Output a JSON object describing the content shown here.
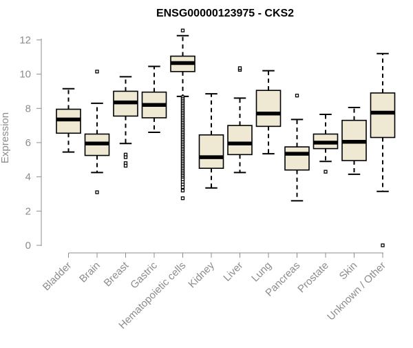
{
  "chart_data": {
    "type": "box",
    "title": "ENSG00000123975 - CKS2",
    "xlabel": "",
    "ylabel": "Expression",
    "ylim": [
      0,
      12.6
    ],
    "yticks": [
      0,
      2,
      4,
      6,
      8,
      10,
      12
    ],
    "grid": false,
    "legend": "none",
    "box_color": "#efe8d2",
    "line_color": "#000000",
    "categories": [
      "Bladder",
      "Brain",
      "Breast",
      "Gastric",
      "Hematopoietic cells",
      "Kidney",
      "Liver",
      "Lung",
      "Pancreas",
      "Prostate",
      "Skin",
      "Unknown / Other"
    ],
    "boxes": [
      {
        "category": "Bladder",
        "whisker_low": 5.45,
        "q1": 6.55,
        "median": 7.35,
        "q3": 7.95,
        "whisker_high": 9.15,
        "outliers": []
      },
      {
        "category": "Brain",
        "whisker_low": 4.25,
        "q1": 5.25,
        "median": 5.95,
        "q3": 6.5,
        "whisker_high": 8.3,
        "outliers": [
          10.15,
          3.1
        ]
      },
      {
        "category": "Breast",
        "whisker_low": 5.95,
        "q1": 7.55,
        "median": 8.35,
        "q3": 9.0,
        "whisker_high": 9.85,
        "outliers": [
          5.3,
          5.15,
          4.8,
          4.65
        ]
      },
      {
        "category": "Gastric",
        "whisker_low": 6.6,
        "q1": 7.45,
        "median": 8.2,
        "q3": 8.95,
        "whisker_high": 10.45,
        "outliers": []
      },
      {
        "category": "Hematopoietic cells",
        "whisker_low": 8.7,
        "q1": 10.15,
        "median": 10.65,
        "q3": 11.05,
        "whisker_high": 12.25,
        "outliers": [
          12.55,
          8.65,
          8.55,
          8.45,
          8.35,
          8.25,
          8.15,
          8.05,
          7.95,
          7.85,
          7.75,
          7.65,
          7.55,
          7.45,
          7.35,
          7.25,
          7.15,
          7.05,
          6.95,
          6.85,
          6.75,
          6.65,
          6.55,
          6.45,
          6.35,
          6.25,
          6.15,
          6.05,
          5.95,
          5.85,
          5.75,
          5.65,
          5.55,
          5.45,
          5.35,
          5.25,
          5.15,
          5.05,
          4.95,
          4.85,
          4.75,
          4.65,
          4.55,
          4.45,
          4.35,
          4.25,
          4.15,
          4.05,
          3.95,
          3.85,
          3.7,
          3.55,
          3.4,
          3.2,
          2.75
        ]
      },
      {
        "category": "Kidney",
        "whisker_low": 3.35,
        "q1": 4.5,
        "median": 5.15,
        "q3": 6.45,
        "whisker_high": 8.85,
        "outliers": []
      },
      {
        "category": "Liver",
        "whisker_low": 4.25,
        "q1": 5.3,
        "median": 5.95,
        "q3": 7.0,
        "whisker_high": 8.6,
        "outliers": [
          10.25,
          10.35
        ]
      },
      {
        "category": "Lung",
        "whisker_low": 5.35,
        "q1": 6.95,
        "median": 7.7,
        "q3": 9.05,
        "whisker_high": 10.2,
        "outliers": []
      },
      {
        "category": "Pancreas",
        "whisker_low": 2.6,
        "q1": 4.4,
        "median": 5.35,
        "q3": 5.75,
        "whisker_high": 7.35,
        "outliers": [
          8.75
        ]
      },
      {
        "category": "Prostate",
        "whisker_low": 4.9,
        "q1": 5.65,
        "median": 6.0,
        "q3": 6.5,
        "whisker_high": 7.65,
        "outliers": [
          4.3
        ]
      },
      {
        "category": "Skin",
        "whisker_low": 4.15,
        "q1": 4.95,
        "median": 6.05,
        "q3": 7.3,
        "whisker_high": 8.05,
        "outliers": []
      },
      {
        "category": "Unknown / Other",
        "whisker_low": 3.15,
        "q1": 6.3,
        "median": 7.75,
        "q3": 8.9,
        "whisker_high": 11.2,
        "outliers": [
          0.0
        ]
      }
    ]
  }
}
